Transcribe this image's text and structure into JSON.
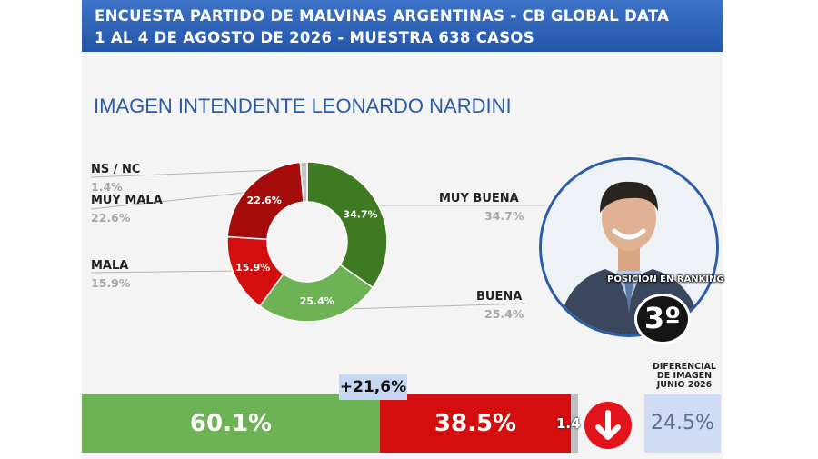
{
  "header": {
    "line1": "ENCUESTA PARTIDO DE MALVINAS ARGENTINAS - CB GLOBAL DATA",
    "line2": "1 AL 4 DE AGOSTO DE 2026 - MUESTRA 638 CASOS"
  },
  "subtitle": "IMAGEN INTENDENTE  LEONARDO NARDINI",
  "chart_data": {
    "type": "pie",
    "title": "IMAGEN INTENDENTE  LEONARDO NARDINI",
    "categories": [
      "MUY BUENA",
      "BUENA",
      "MALA",
      "MUY MALA",
      "NS / NC"
    ],
    "values": [
      34.7,
      25.4,
      15.9,
      22.6,
      1.4
    ],
    "labels": [
      "34.7%",
      "25.4%",
      "15.9%",
      "22.6%",
      "1.4%"
    ],
    "colors": [
      "#3e7a22",
      "#6db355",
      "#d40e0e",
      "#a50d0d",
      "#c3c3c3"
    ],
    "legend": [
      {
        "name": "MUY BUENA",
        "value": "34.7%"
      },
      {
        "name": "BUENA",
        "value": "25.4%"
      },
      {
        "name": "MALA",
        "value": "15.9%"
      },
      {
        "name": "MUY MALA",
        "value": "22.6%"
      },
      {
        "name": "NS / NC",
        "value": "1.4%"
      }
    ]
  },
  "summary": {
    "positive": "60.1%",
    "negative": "38.5%",
    "ns": "1.4",
    "difference": "+21,6%",
    "shares": [
      60.1,
      38.5,
      1.4
    ],
    "colors": {
      "positive": "#6db355",
      "negative": "#d40e0e",
      "ns": "#bdbdbd"
    },
    "trend_icon": "down-arrow-icon"
  },
  "ranking": {
    "label": "POSICIÓN EN RANKING",
    "value": "3º"
  },
  "differential": {
    "label_lines": [
      "DIFERENCIAL",
      "DE IMAGEN",
      "JUNIO 2026"
    ],
    "value": "24.5%"
  }
}
